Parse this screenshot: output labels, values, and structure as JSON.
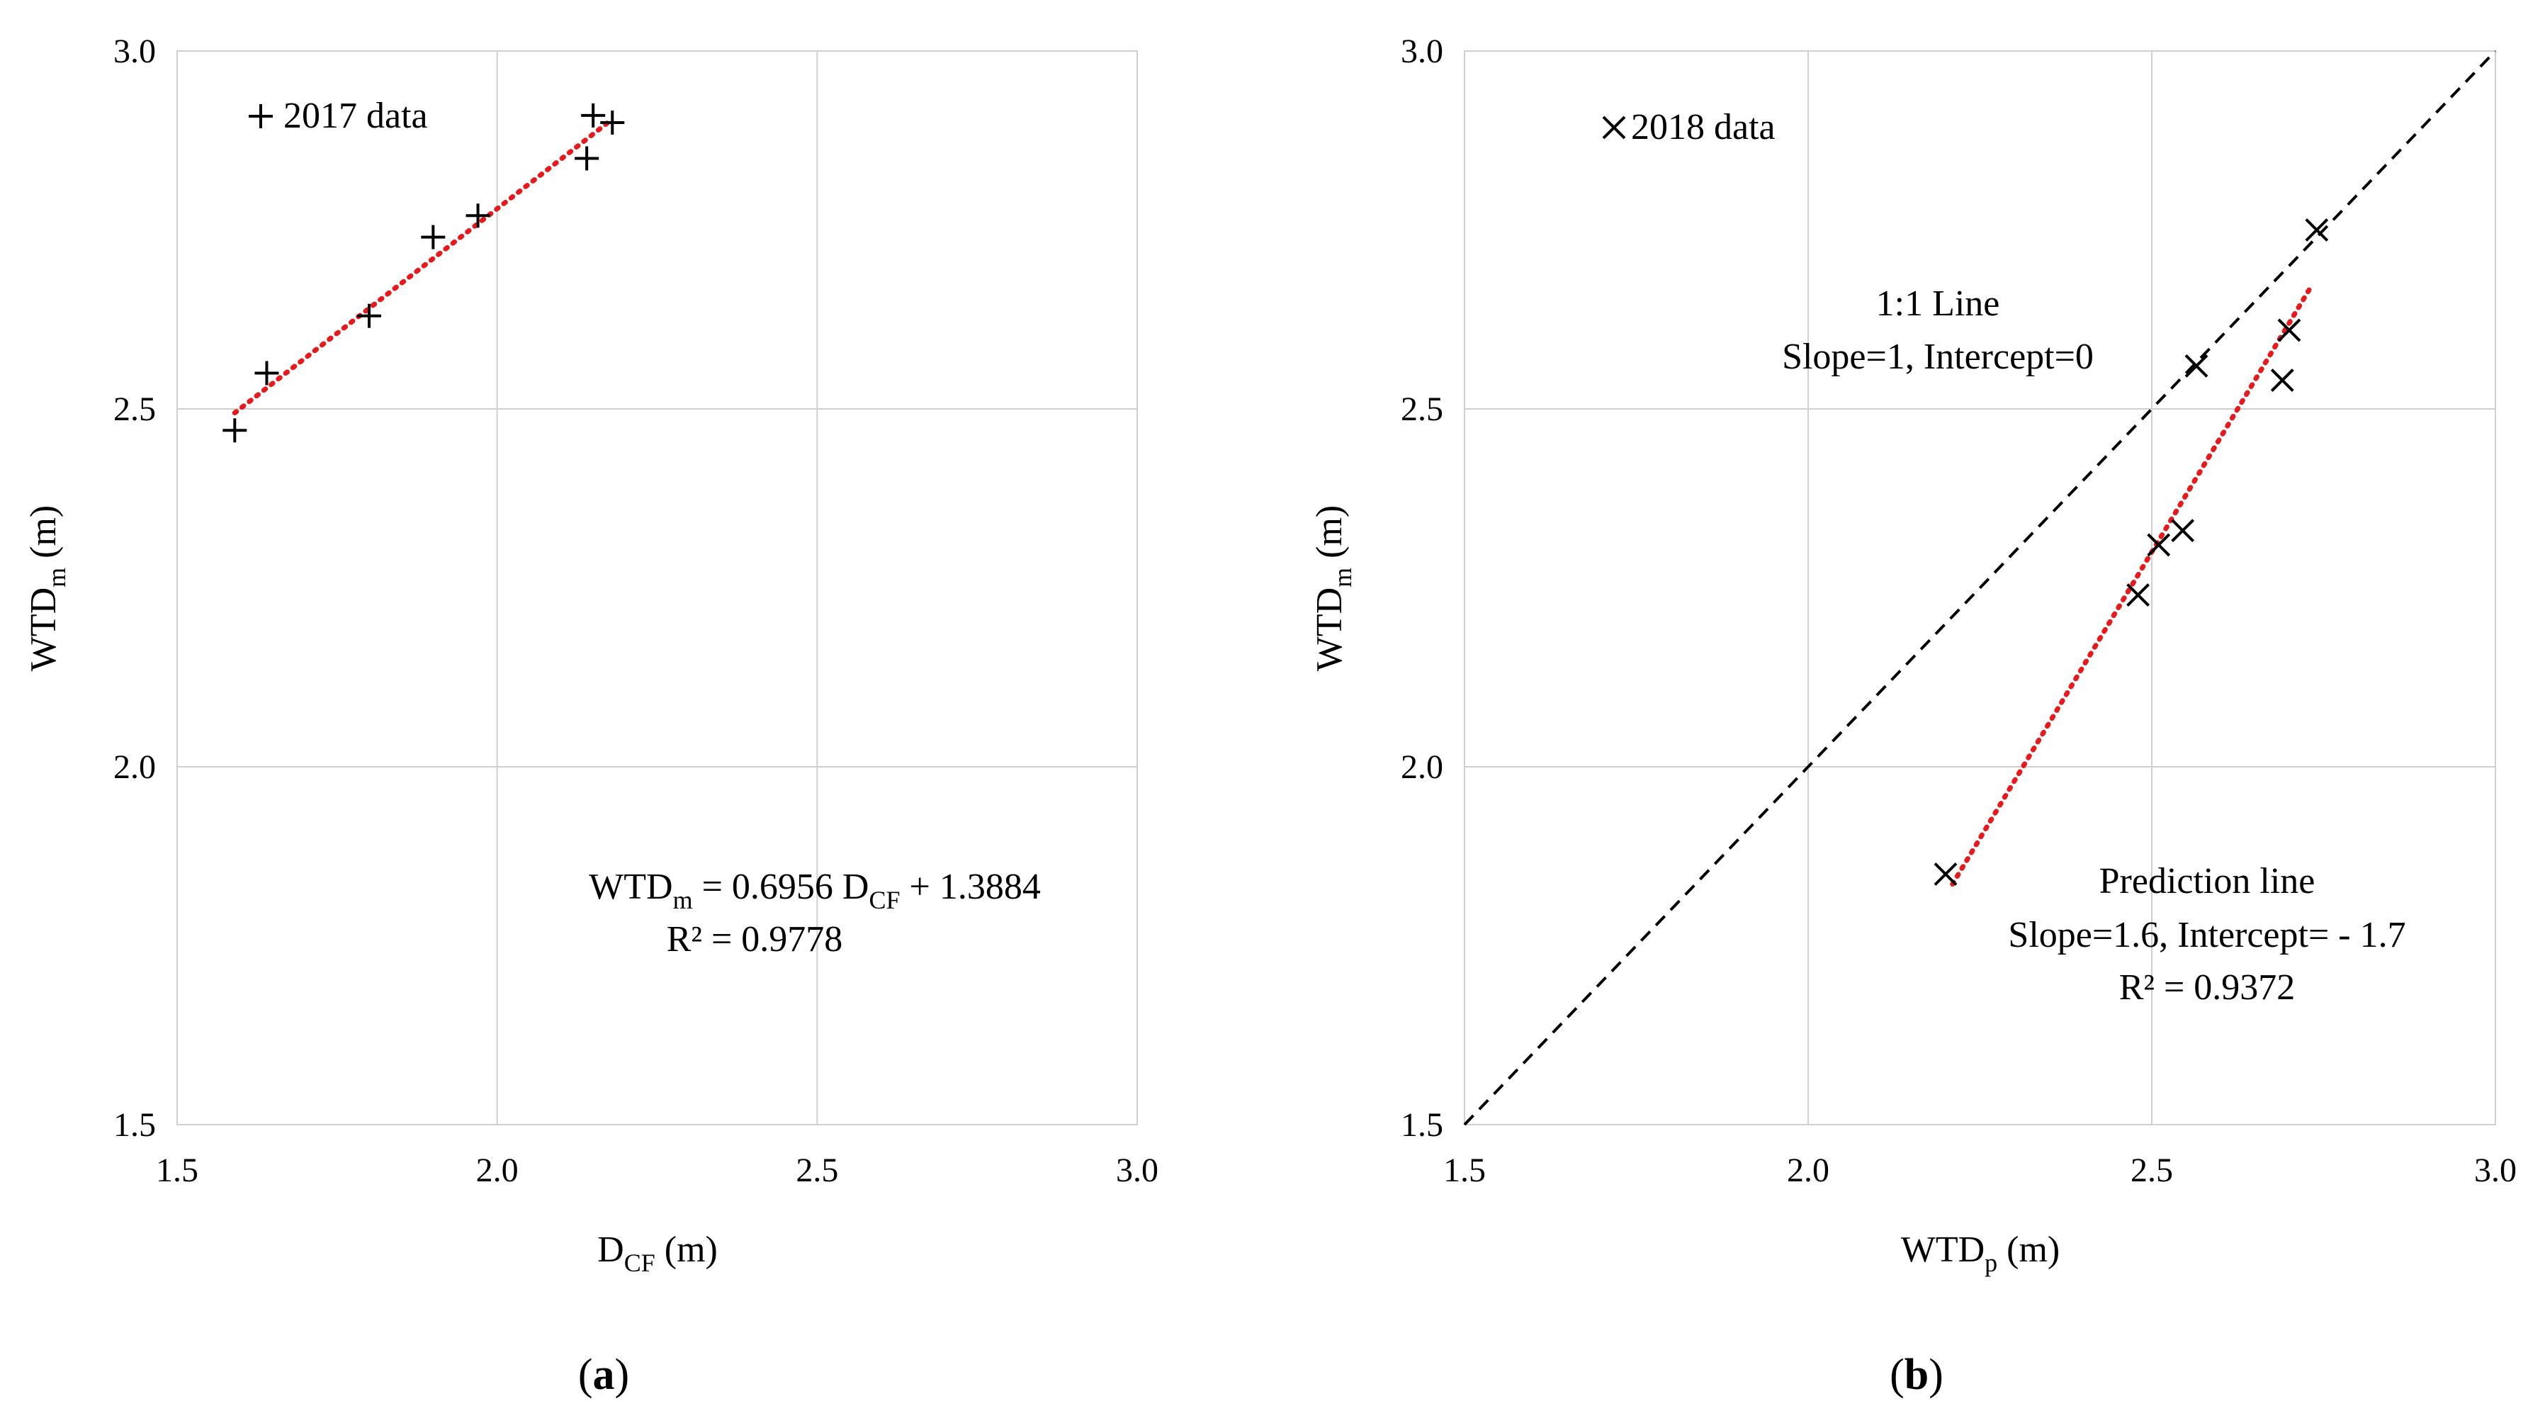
{
  "chart_data": [
    {
      "panel": "a",
      "type": "scatter",
      "caption_letter": "a",
      "xlabel_main": "D",
      "xlabel_sub": "CF",
      "xlabel_unit": " (m)",
      "ylabel_main": "WTD",
      "ylabel_sub": "m",
      "ylabel_unit": " (m)",
      "xlim": [
        1.5,
        3.0
      ],
      "ylim": [
        1.5,
        3.0
      ],
      "xticks": [
        1.5,
        2.0,
        2.5,
        3.0
      ],
      "yticks": [
        1.5,
        2.0,
        2.5,
        3.0
      ],
      "xtick_labels": [
        "1.5",
        "2.0",
        "2.5",
        "3.0"
      ],
      "ytick_labels": [
        "1.5",
        "2.0",
        "2.5",
        "3.0"
      ],
      "grid": true,
      "legend": {
        "symbol": "+",
        "label": "2017 data",
        "position": "top-left"
      },
      "series": [
        {
          "name": "2017 data",
          "marker": "plus",
          "x": [
            1.59,
            1.64,
            1.8,
            1.9,
            1.97,
            2.14,
            2.15,
            2.18
          ],
          "y": [
            2.47,
            2.55,
            2.63,
            2.74,
            2.77,
            2.85,
            2.91,
            2.9
          ]
        }
      ],
      "trendline": {
        "style": "dotted",
        "color": "#e8191b",
        "x_start": 1.59,
        "x_end": 2.18,
        "slope": 0.6956,
        "intercept": 1.3884
      },
      "equation": {
        "lhs_main": "WTD",
        "lhs_sub": "m",
        "middle": " = 0.6956 D",
        "var_sub": "CF",
        "rhs": " + 1.3884",
        "r2": "R² = 0.9778"
      }
    },
    {
      "panel": "b",
      "type": "scatter",
      "caption_letter": "b",
      "xlabel_main": "WTD",
      "xlabel_sub": "p",
      "xlabel_unit": " (m)",
      "ylabel_main": "WTD",
      "ylabel_sub": "m",
      "ylabel_unit": " (m)",
      "xlim": [
        1.5,
        3.0
      ],
      "ylim": [
        1.5,
        3.0
      ],
      "xticks": [
        1.5,
        2.0,
        2.5,
        3.0
      ],
      "yticks": [
        1.5,
        2.0,
        2.5,
        3.0
      ],
      "xtick_labels": [
        "1.5",
        "2.0",
        "2.5",
        "3.0"
      ],
      "ytick_labels": [
        "1.5",
        "2.0",
        "2.5",
        "3.0"
      ],
      "grid": true,
      "legend": {
        "symbol": "×",
        "label": "2018 data",
        "position": "top-left"
      },
      "series": [
        {
          "name": "2018 data",
          "marker": "cross",
          "x": [
            2.2,
            2.48,
            2.51,
            2.545,
            2.565,
            2.69,
            2.7,
            2.74
          ],
          "y": [
            1.85,
            2.24,
            2.31,
            2.33,
            2.56,
            2.54,
            2.61,
            2.75
          ]
        }
      ],
      "one_to_one_line": {
        "style": "dashed",
        "color": "#000000",
        "from": [
          1.5,
          1.5
        ],
        "to": [
          3.0,
          3.0
        ],
        "label_line1": "1:1 Line",
        "label_line2": "Slope=1, Intercept=0"
      },
      "trendline": {
        "style": "dotted",
        "color": "#e8191b",
        "x_start": 2.21,
        "x_end": 2.73,
        "slope": 1.6,
        "intercept": -1.7
      },
      "prediction_label": {
        "title": "Prediction line",
        "line2": "Slope=1.6, Intercept= - 1.7",
        "r2": "R² = 0.9372"
      }
    }
  ]
}
